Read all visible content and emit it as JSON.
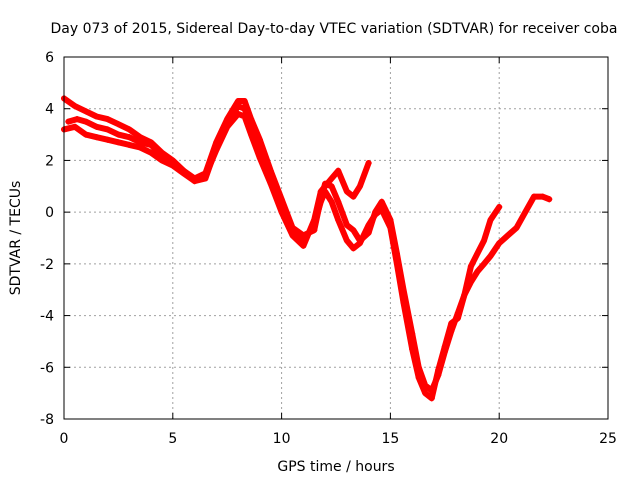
{
  "chart_data": {
    "type": "scatter",
    "title": "Day 073 of 2015, Sidereal Day-to-day VTEC variation (SDTVAR) for receiver coba",
    "xlabel": "GPS time / hours",
    "ylabel": "SDTVAR / TECUs",
    "xlim": [
      0,
      25
    ],
    "ylim": [
      -8,
      6
    ],
    "xticks": [
      0,
      5,
      10,
      15,
      20,
      25
    ],
    "yticks": [
      -8,
      -6,
      -4,
      -2,
      0,
      2,
      4,
      6
    ],
    "grid": true,
    "marker": "+",
    "color": "#ff0000",
    "series": [
      {
        "x": [
          0.0,
          0.5,
          1.0,
          1.5,
          2.0,
          2.5,
          3.0,
          3.5,
          4.0,
          4.5,
          5.0,
          5.5,
          6.0,
          6.5,
          7.0,
          7.5,
          8.0,
          8.3,
          8.6,
          9.0,
          9.5,
          10.0,
          10.5,
          11.0,
          11.5,
          11.8,
          12.0,
          12.3,
          12.6,
          13.0,
          13.3,
          13.6,
          14.0,
          14.3,
          14.6,
          15.0,
          15.3,
          15.6,
          16.0,
          16.3,
          16.6,
          16.9,
          17.2,
          17.5,
          17.8,
          18.1,
          18.4,
          18.7,
          19.0,
          19.3,
          19.6,
          20.0,
          20.4,
          20.8,
          21.2,
          21.6,
          22.0,
          22.3
        ],
        "y": [
          4.4,
          4.1,
          3.9,
          3.7,
          3.6,
          3.4,
          3.2,
          2.9,
          2.7,
          2.3,
          2.0,
          1.6,
          1.3,
          1.5,
          2.7,
          3.6,
          4.3,
          4.3,
          3.6,
          2.8,
          1.6,
          0.5,
          -0.6,
          -0.9,
          -0.7,
          0.5,
          1.1,
          1.0,
          0.4,
          -0.5,
          -0.7,
          -1.1,
          -0.8,
          0.0,
          0.4,
          -0.3,
          -1.6,
          -3.0,
          -4.7,
          -6.0,
          -6.7,
          -6.9,
          -6.3,
          -5.4,
          -4.6,
          -3.9,
          -3.2,
          -2.7,
          -2.3,
          -2.0,
          -1.7,
          -1.2,
          -0.9,
          -0.6,
          0.0,
          0.6,
          0.6,
          0.5
        ]
      },
      {
        "x": [
          0.0,
          0.5,
          1.0,
          1.5,
          2.0,
          2.5,
          3.0,
          3.5,
          4.0,
          4.5,
          5.0,
          5.5,
          6.0,
          6.5,
          7.0,
          7.5,
          8.0,
          8.3,
          8.6,
          9.0,
          9.5,
          10.0,
          10.5,
          11.0,
          11.5,
          11.8,
          12.0,
          12.3,
          12.6,
          13.0,
          13.3,
          13.6,
          14.0
        ],
        "y": [
          3.2,
          3.3,
          3.0,
          2.9,
          2.8,
          2.7,
          2.6,
          2.5,
          2.3,
          2.0,
          1.8,
          1.5,
          1.2,
          1.4,
          2.4,
          3.3,
          3.8,
          3.7,
          3.0,
          2.1,
          1.1,
          0.0,
          -0.9,
          -1.3,
          -0.3,
          0.8,
          1.0,
          1.3,
          1.6,
          0.8,
          0.6,
          1.0,
          1.9
        ]
      },
      {
        "x": [
          0.2,
          0.6,
          1.0,
          1.5,
          2.0,
          2.5,
          3.0,
          3.5,
          4.0,
          4.5,
          5.0,
          5.5,
          6.0,
          6.5,
          7.0,
          7.5,
          8.0,
          8.3,
          8.6,
          9.0,
          9.5,
          10.0,
          10.5,
          11.0,
          11.5,
          11.8,
          12.0,
          12.3,
          12.6,
          13.0,
          13.3,
          13.6,
          14.0,
          14.3,
          14.6,
          15.0,
          15.3,
          15.6,
          16.0,
          16.3,
          16.6,
          16.9,
          17.2,
          17.5,
          17.8,
          18.1,
          18.4,
          18.7,
          19.0,
          19.3,
          19.6,
          20.0
        ],
        "y": [
          3.5,
          3.6,
          3.5,
          3.3,
          3.2,
          3.0,
          2.9,
          2.7,
          2.6,
          2.2,
          1.9,
          1.6,
          1.2,
          1.3,
          2.5,
          3.4,
          4.1,
          4.0,
          3.3,
          2.4,
          1.3,
          0.2,
          -0.8,
          -1.1,
          -0.5,
          0.4,
          0.8,
          0.4,
          -0.3,
          -1.1,
          -1.4,
          -1.2,
          -0.5,
          -0.1,
          0.1,
          -0.6,
          -2.0,
          -3.5,
          -5.3,
          -6.4,
          -7.0,
          -7.2,
          -6.1,
          -5.2,
          -4.3,
          -4.1,
          -3.2,
          -2.1,
          -1.6,
          -1.1,
          -0.3,
          0.2
        ]
      }
    ]
  }
}
